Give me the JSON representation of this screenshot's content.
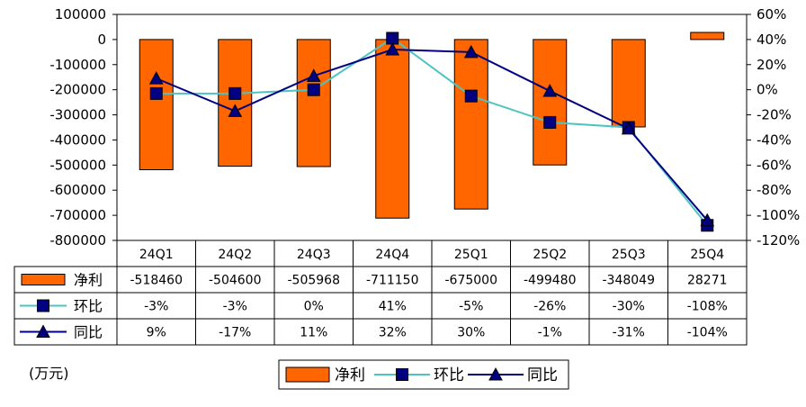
{
  "unit_label": "(万元)",
  "chart_data": {
    "type": "bar",
    "categories": [
      "24Q1",
      "24Q2",
      "24Q3",
      "24Q4",
      "25Q1",
      "25Q2",
      "25Q3",
      "25Q4"
    ],
    "series": [
      {
        "name": "净利",
        "type": "bar",
        "axis": "left",
        "color": "#FF6600",
        "values": [
          -518460,
          -504600,
          -505968,
          -711150,
          -675000,
          -499480,
          -348049,
          28271
        ],
        "labels": [
          "-518460",
          "-504600",
          "-505968",
          "-711150",
          "-675000",
          "-499480",
          "-348049",
          "28271"
        ]
      },
      {
        "name": "环比",
        "type": "line",
        "axis": "right",
        "color": "#4FC3C3",
        "marker": "square",
        "values": [
          -3,
          -3,
          0,
          41,
          -5,
          -26,
          -30,
          -108
        ],
        "labels": [
          "-3%",
          "-3%",
          "0%",
          "41%",
          "-5%",
          "-26%",
          "-30%",
          "-108%"
        ]
      },
      {
        "name": "同比",
        "type": "line",
        "axis": "right",
        "color": "#000080",
        "marker": "triangle",
        "values": [
          9,
          -17,
          11,
          32,
          30,
          -1,
          -31,
          -104
        ],
        "labels": [
          "9%",
          "-17%",
          "11%",
          "32%",
          "30%",
          "-1%",
          "-31%",
          "-104%"
        ]
      }
    ],
    "y_left": {
      "ylim": [
        -800000,
        100000
      ],
      "ticks": [
        100000,
        0,
        -100000,
        -200000,
        -300000,
        -400000,
        -500000,
        -600000,
        -700000,
        -800000
      ],
      "tick_labels": [
        "100000",
        "0",
        "-100000",
        "-200000",
        "-300000",
        "-400000",
        "-500000",
        "-600000",
        "-700000",
        "-800000"
      ]
    },
    "y_right": {
      "ylim": [
        -120,
        60
      ],
      "ticks": [
        60,
        40,
        20,
        0,
        -20,
        -40,
        -60,
        -80,
        -100,
        -120
      ],
      "tick_labels": [
        "60%",
        "40%",
        "20%",
        "0%",
        "-20%",
        "-40%",
        "-60%",
        "-80%",
        "-100%",
        "-120%"
      ]
    },
    "data_table": true,
    "legend": {
      "position": "bottom",
      "items": [
        "净利",
        "环比",
        "同比"
      ]
    },
    "grid": false
  }
}
